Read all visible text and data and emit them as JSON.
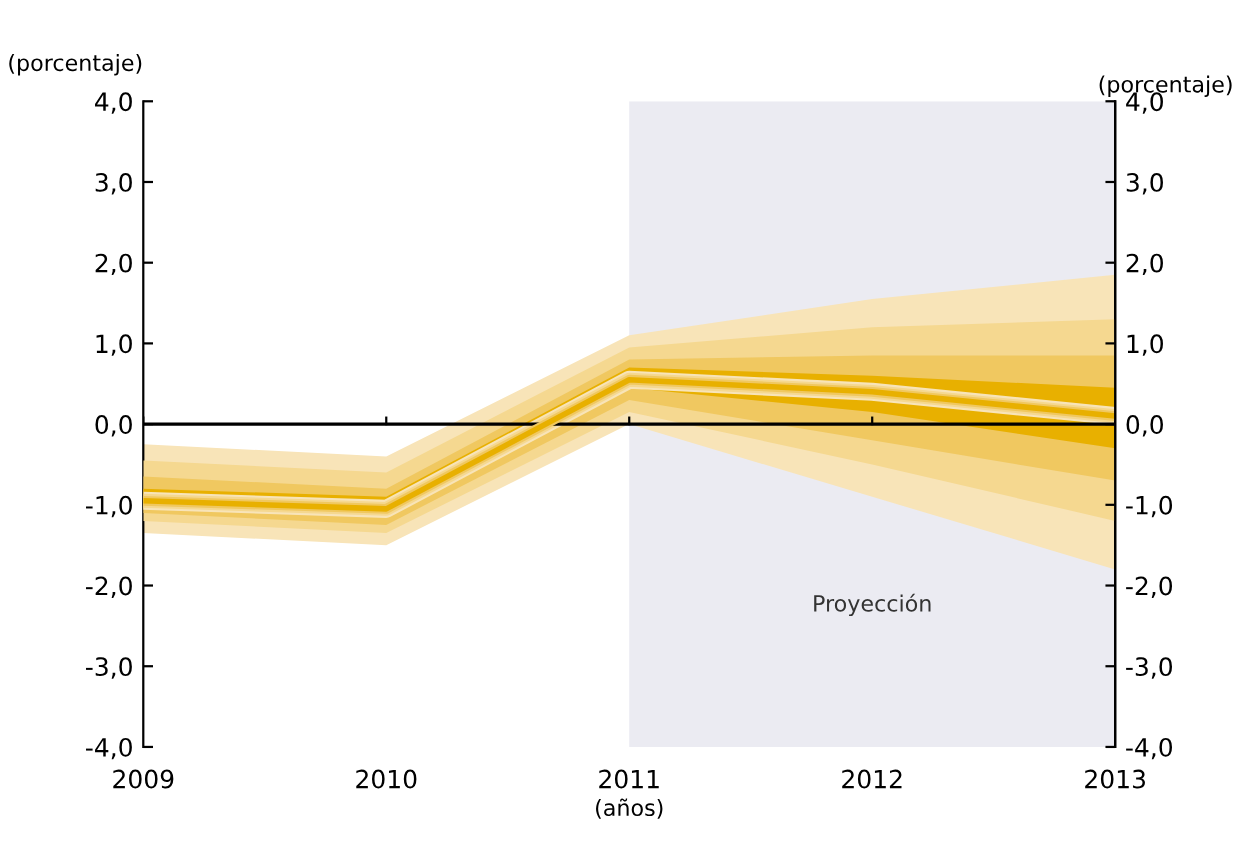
{
  "chart_data": {
    "type": "line",
    "ylabel": "(porcentaje)",
    "y2label": "(porcentaje)",
    "xlabel": "(años)",
    "x": [
      2009,
      2010,
      2011,
      2012,
      2013
    ],
    "xlim": [
      2009,
      2013
    ],
    "xticks": [
      2009,
      2010,
      2011,
      2012,
      2013
    ],
    "ylim": [
      -4,
      4
    ],
    "yticks": [
      {
        "value": -4,
        "label": "-4,0"
      },
      {
        "value": -3,
        "label": "-3,0"
      },
      {
        "value": -2,
        "label": "-2,0"
      },
      {
        "value": -1,
        "label": "-1,0"
      },
      {
        "value": 0,
        "label": "0,0"
      },
      {
        "value": 1,
        "label": "1,0"
      },
      {
        "value": 2,
        "label": "2,0"
      },
      {
        "value": 3,
        "label": "3,0"
      },
      {
        "value": 4,
        "label": "4,0"
      }
    ],
    "y2lim": [
      -4,
      4
    ],
    "y2ticks": [
      {
        "value": -4,
        "label": "-4,0"
      },
      {
        "value": -3,
        "label": "-3,0"
      },
      {
        "value": -2,
        "label": "-2,0"
      },
      {
        "value": -1,
        "label": "-1,0"
      },
      {
        "value": 0,
        "label": "0,0"
      },
      {
        "value": 1,
        "label": "1,0"
      },
      {
        "value": 2,
        "label": "2,0"
      },
      {
        "value": 3,
        "label": "3,0"
      },
      {
        "value": 4,
        "label": "4,0"
      }
    ],
    "series": [
      {
        "color": "#f8e4b8",
        "values": [
          -0.95,
          -1.05,
          0.55,
          0.4,
          0.1
        ],
        "lower": [
          -1.35,
          -1.5,
          0.0,
          -0.9,
          -1.8
        ],
        "upper": [
          -0.25,
          -0.4,
          1.1,
          1.55,
          1.85
        ]
      },
      {
        "color": "#f5d890",
        "values": [
          -0.95,
          -1.05,
          0.55,
          0.4,
          0.1
        ],
        "lower": [
          -1.2,
          -1.35,
          0.15,
          -0.5,
          -1.2
        ],
        "upper": [
          -0.45,
          -0.6,
          0.95,
          1.2,
          1.3
        ]
      },
      {
        "color": "#f0c860",
        "values": [
          -0.95,
          -1.05,
          0.55,
          0.4,
          0.1
        ],
        "lower": [
          -1.1,
          -1.25,
          0.3,
          -0.2,
          -0.7
        ],
        "upper": [
          -0.65,
          -0.8,
          0.8,
          0.85,
          0.85
        ]
      },
      {
        "color": "#e8b000",
        "values": [
          -0.95,
          -1.05,
          0.55,
          0.4,
          0.1
        ],
        "lower": [
          -1.05,
          -1.15,
          0.45,
          0.15,
          -0.3
        ],
        "upper": [
          -0.8,
          -0.9,
          0.7,
          0.6,
          0.45
        ]
      }
    ],
    "ref_lines": [
      {
        "axis": "y",
        "value": 0,
        "color": "#000000"
      }
    ],
    "bands": [
      {
        "axis": "x",
        "from": 2011,
        "to": 2013,
        "label": "Proyección",
        "color": "#ebebf2"
      }
    ],
    "grid": false,
    "legend": false
  }
}
